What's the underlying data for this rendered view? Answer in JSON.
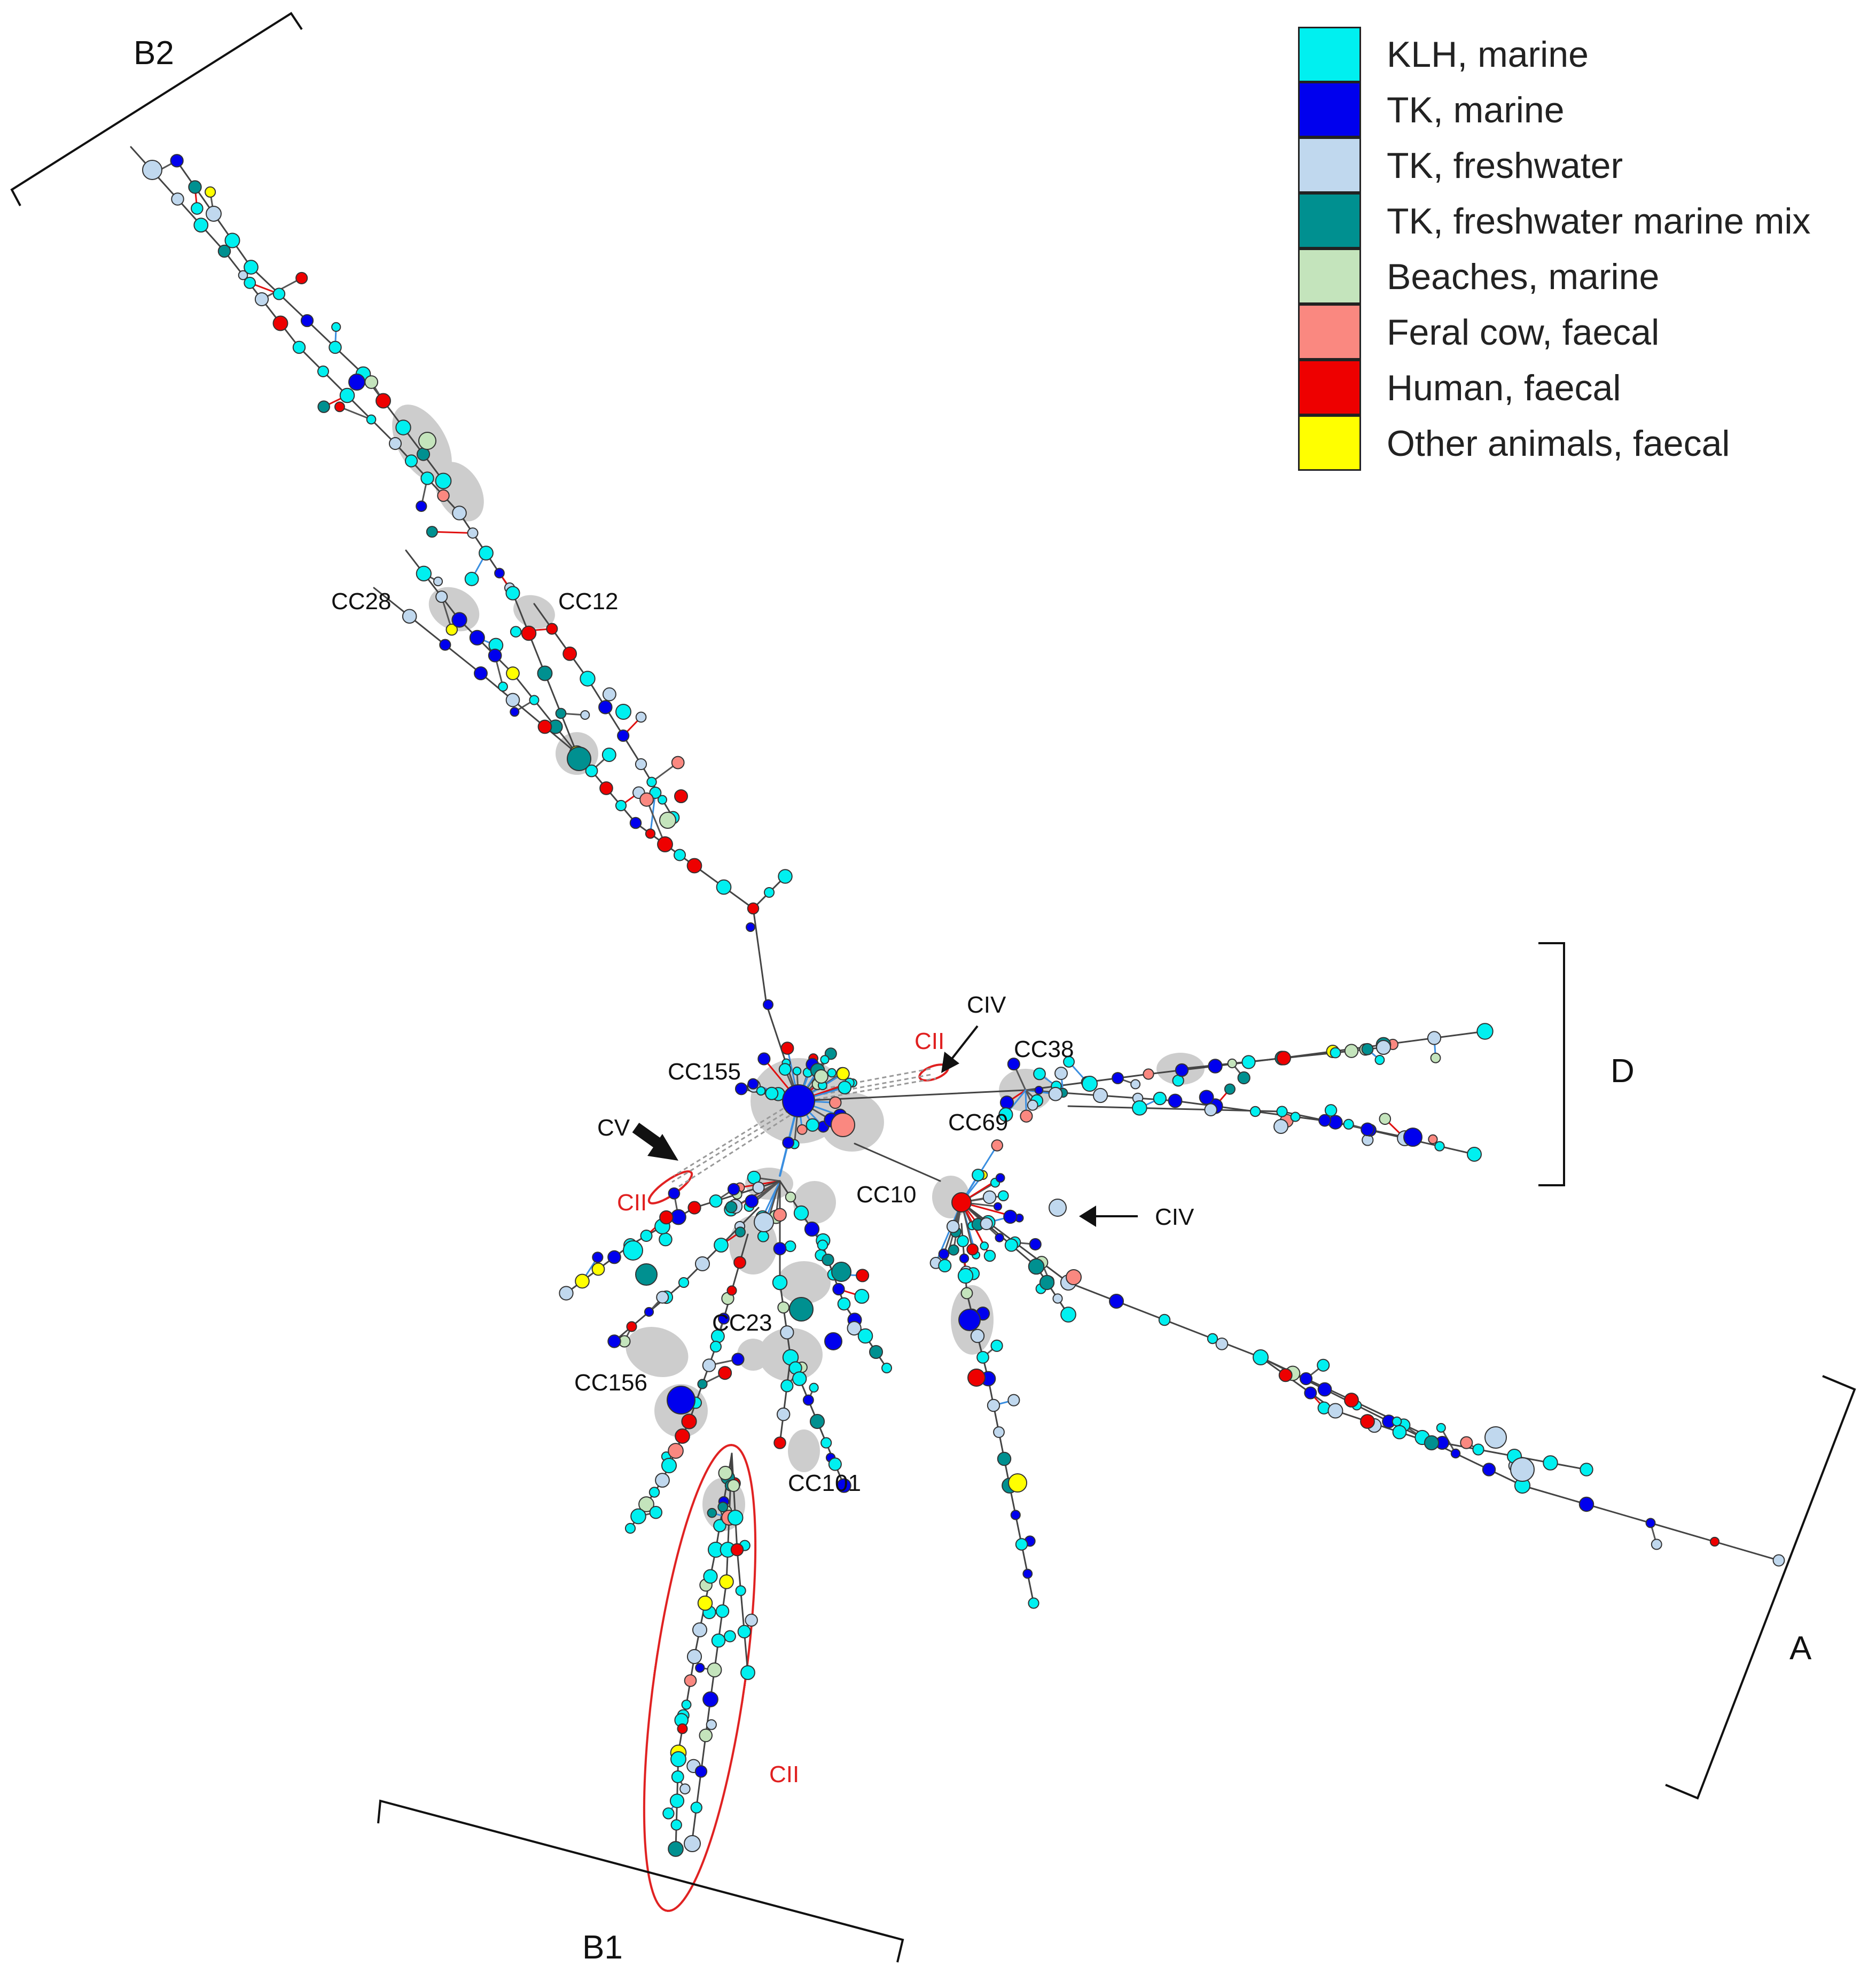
{
  "legend": {
    "items": [
      {
        "label": "KLH, marine",
        "color": "#00f0f0"
      },
      {
        "label": "TK, marine",
        "color": "#0000ee"
      },
      {
        "label": "TK, freshwater",
        "color": "#c0d8ee"
      },
      {
        "label": "TK, freshwater marine mix",
        "color": "#009090"
      },
      {
        "label": "Beaches, marine",
        "color": "#c4e4bc"
      },
      {
        "label": "Feral cow, faecal",
        "color": "#fa8880"
      },
      {
        "label": "Human, faecal",
        "color": "#ee0000"
      },
      {
        "label": "Other animals, faecal",
        "color": "#ffff00"
      }
    ]
  },
  "phylogroups": {
    "b2": "B2",
    "d": "D",
    "a": "A",
    "b1": "B1"
  },
  "clonal_complexes": {
    "cc28": "CC28",
    "cc12": "CC12",
    "cc155": "CC155",
    "cc38": "CC38",
    "cc69": "CC69",
    "cc10": "CC10",
    "cc23": "CC23",
    "cc156": "CC156",
    "cc101": "CC101"
  },
  "clades": {
    "civ_top": "CIV",
    "cii_top": "CII",
    "cv": "CV",
    "cii_left": "CII",
    "civ_right": "CIV",
    "cii_bottom": "CII"
  }
}
